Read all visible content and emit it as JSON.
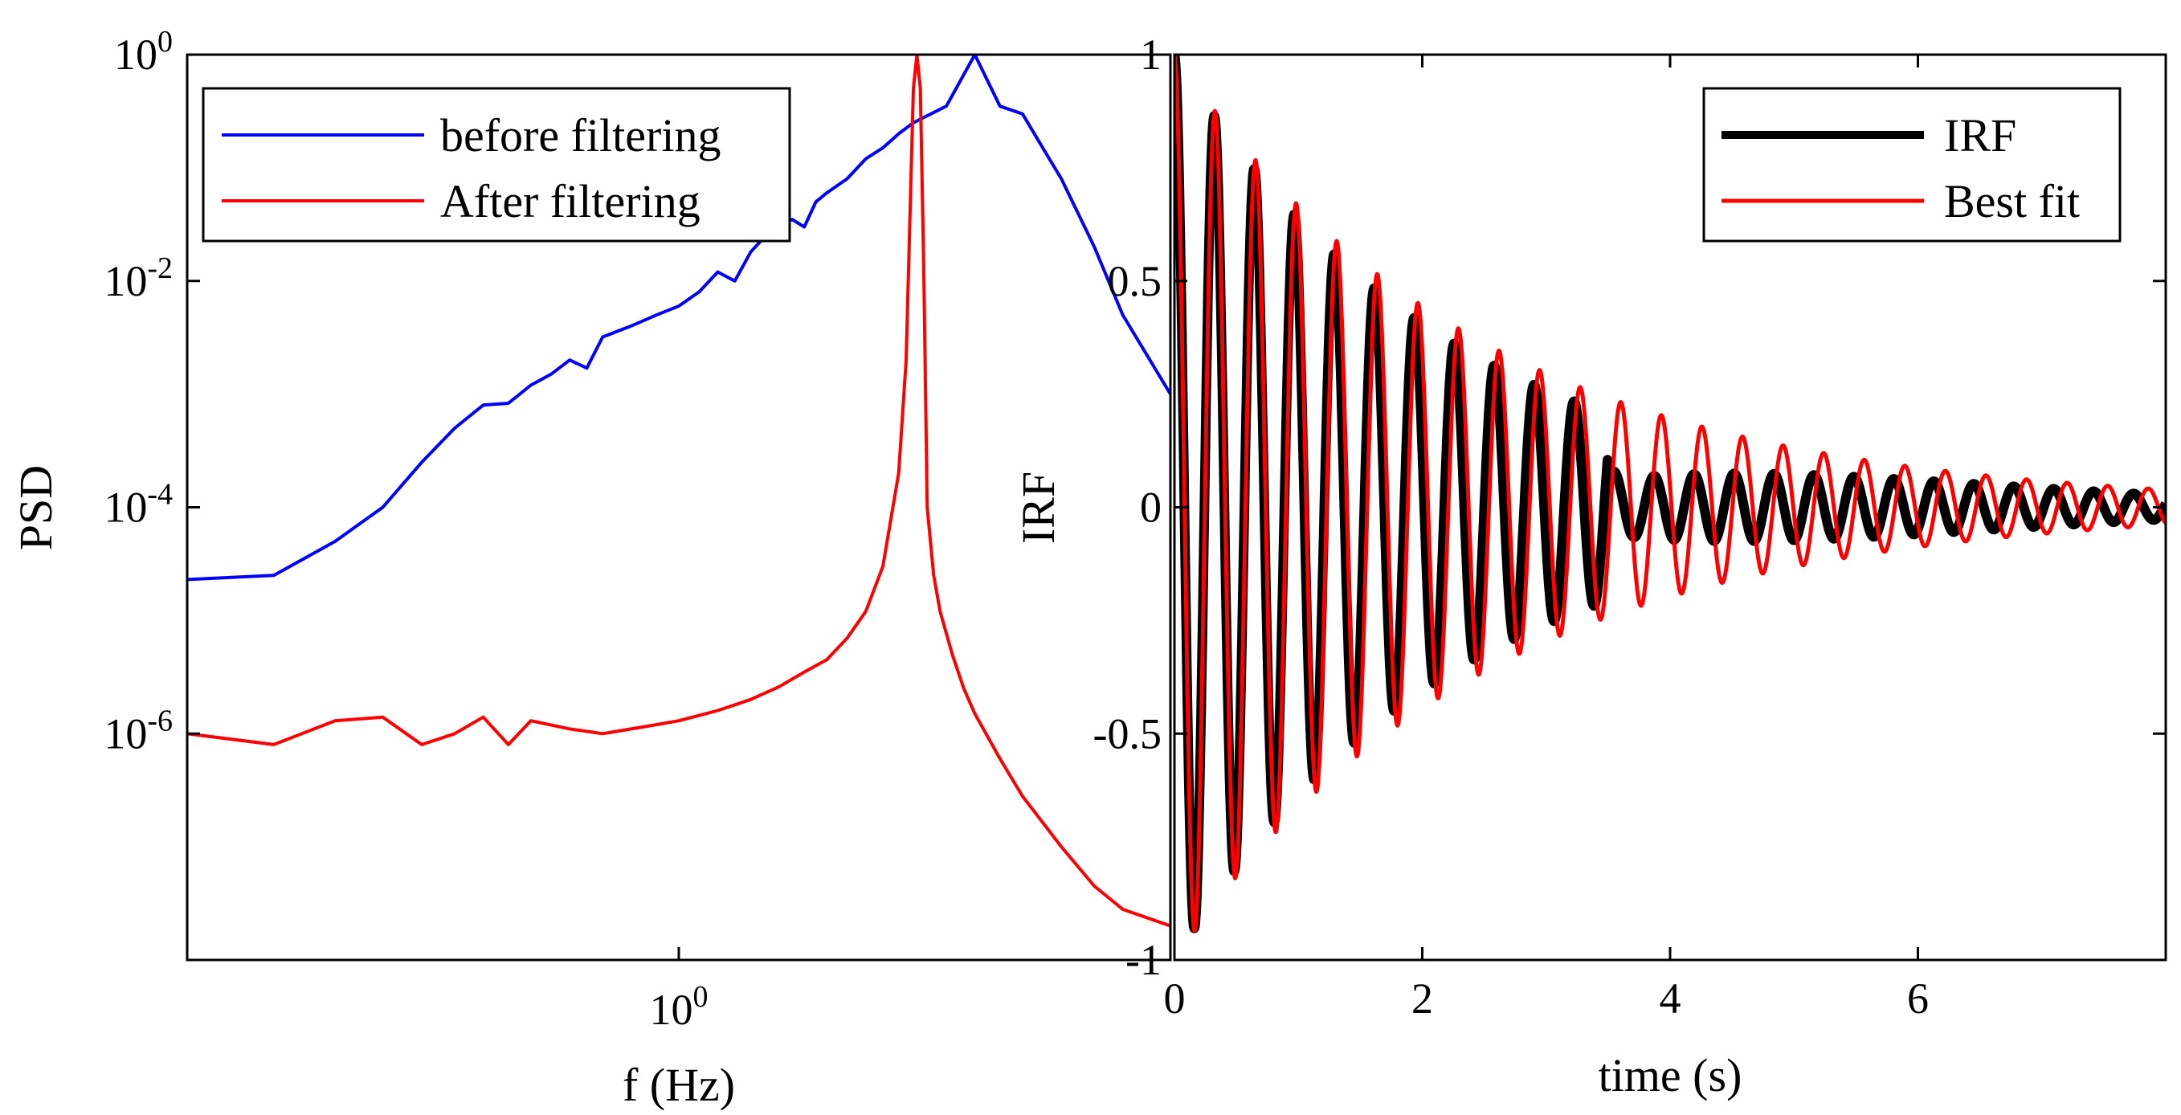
{
  "colors": {
    "blue": "#0000ff",
    "red": "#ff0000",
    "black": "#000000"
  },
  "chart_data": [
    {
      "type": "line",
      "title": "",
      "xlabel": "f (Hz)",
      "ylabel": "PSD",
      "xscale": "log",
      "yscale": "log",
      "xlim": [
        0.1,
        10
      ],
      "ylim": [
        1e-08,
        1
      ],
      "xtick_labels": [
        {
          "base": "10",
          "exp": "0",
          "value": 1
        }
      ],
      "ytick_labels": [
        {
          "base": "10",
          "exp": "0",
          "value": 1
        },
        {
          "base": "10",
          "exp": "-2",
          "value": 0.01
        },
        {
          "base": "10",
          "exp": "-4",
          "value": 0.0001
        },
        {
          "base": "10",
          "exp": "-6",
          "value": 1e-06
        }
      ],
      "legend_position": "top-left",
      "series": [
        {
          "name": "before filtering",
          "color": "#0000ff",
          "x": [
            0.1,
            0.15,
            0.2,
            0.25,
            0.3,
            0.35,
            0.4,
            0.45,
            0.5,
            0.55,
            0.6,
            0.65,
            0.7,
            0.8,
            0.9,
            1.0,
            1.1,
            1.2,
            1.3,
            1.4,
            1.5,
            1.6,
            1.7,
            1.8,
            1.9,
            2.0,
            2.2,
            2.4,
            2.6,
            2.8,
            3.0,
            3.5,
            4.0,
            4.5,
            5.0,
            5.5,
            6.0,
            7.0,
            8.0,
            10.0
          ],
          "y": [
            2.3e-05,
            2.5e-05,
            5e-05,
            0.0001,
            0.00025,
            0.0005,
            0.0008,
            0.00083,
            0.0012,
            0.0015,
            0.002,
            0.0017,
            0.0032,
            0.004,
            0.005,
            0.006,
            0.008,
            0.012,
            0.01,
            0.018,
            0.025,
            0.03,
            0.035,
            0.03,
            0.05,
            0.06,
            0.08,
            0.12,
            0.15,
            0.2,
            0.25,
            0.35,
            1.0,
            0.35,
            0.3,
            0.15,
            0.08,
            0.02,
            0.005,
            0.001
          ]
        },
        {
          "name": "After filtering",
          "color": "#ff0000",
          "x": [
            0.1,
            0.15,
            0.2,
            0.25,
            0.3,
            0.35,
            0.4,
            0.45,
            0.5,
            0.6,
            0.7,
            0.8,
            0.9,
            1.0,
            1.2,
            1.4,
            1.6,
            1.8,
            2.0,
            2.2,
            2.4,
            2.6,
            2.8,
            2.9,
            3.0,
            3.05,
            3.1,
            3.15,
            3.2,
            3.3,
            3.4,
            3.6,
            3.8,
            4.0,
            4.5,
            5.0,
            6.0,
            7.0,
            8.0,
            10.0
          ],
          "y": [
            1e-06,
            8e-07,
            1.3e-06,
            1.4e-06,
            8e-07,
            1e-06,
            1.4e-06,
            8e-07,
            1.3e-06,
            1.1e-06,
            1e-06,
            1.1e-06,
            1.2e-06,
            1.3e-06,
            1.6e-06,
            2e-06,
            2.6e-06,
            3.5e-06,
            4.5e-06,
            7e-06,
            1.2e-05,
            3e-05,
            0.0002,
            0.002,
            0.5,
            1.0,
            0.5,
            0.012,
            0.0001,
            2.5e-05,
            1.2e-05,
            5e-06,
            2.5e-06,
            1.5e-06,
            6e-07,
            2.8e-07,
            1e-07,
            4.5e-08,
            2.8e-08,
            2e-08
          ]
        }
      ]
    },
    {
      "type": "line",
      "title": "",
      "xlabel": "time (s)",
      "ylabel": "IRF",
      "xlim": [
        0,
        8
      ],
      "ylim": [
        -1,
        1
      ],
      "xtick_labels": [
        "0",
        "2",
        "4",
        "6"
      ],
      "ytick_labels": [
        "1",
        "0.5",
        "0",
        "-0.5",
        "-1"
      ],
      "legend_position": "top-right",
      "series": [
        {
          "name": "IRF",
          "color": "#000000"
        },
        {
          "name": "Best fit",
          "color": "#ff0000"
        }
      ],
      "signal": {
        "description": "decaying oscillation",
        "frequency_hz": 3.1,
        "damping_per_s": 0.45,
        "initial_amplitude": 1
      }
    }
  ]
}
